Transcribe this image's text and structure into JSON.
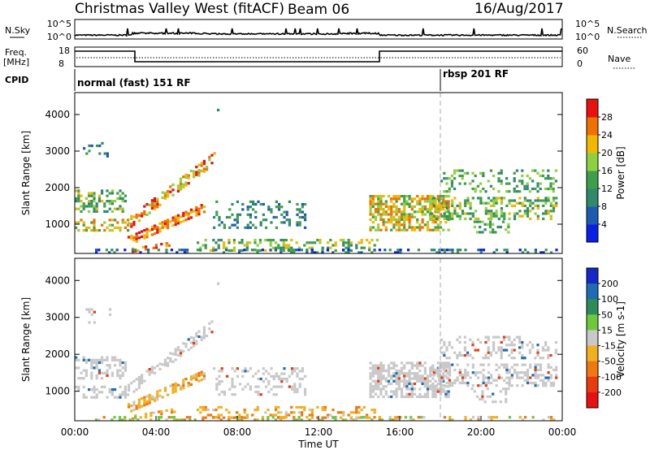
{
  "header": {
    "title": "Christmas Valley West (fitACF)",
    "beam": "Beam 06",
    "date": "16/Aug/2017"
  },
  "top_panel": {
    "left_label": "N.Sky",
    "right_label": "N.Search",
    "left_ticks": [
      "10^5",
      "10^0"
    ],
    "right_ticks": [
      "10^5",
      "10^0"
    ]
  },
  "freq_panel": {
    "left_label_line1": "Freq.",
    "left_label_line2": "[MHz]",
    "right_label": "Nave",
    "left_ticks": [
      "18",
      "8"
    ],
    "right_ticks": [
      "60",
      "0"
    ]
  },
  "cpid": {
    "label": "CPID",
    "segments": [
      {
        "text": "normal (fast) 151 RF",
        "start_hour": 0
      },
      {
        "text": "rbsp 201 RF",
        "start_hour": 18
      }
    ]
  },
  "chart_data": [
    {
      "type": "heatmap",
      "name_ref": "power-panel",
      "ylabel": "Slant Range [km]",
      "ylim": [
        200,
        4600
      ],
      "xlim": [
        0,
        24
      ],
      "yticks": [
        1000,
        2000,
        3000,
        4000
      ],
      "colorbar": {
        "label": "Power [dB]",
        "ticks": [
          "4",
          "8",
          "12",
          "16",
          "20",
          "24",
          "28"
        ],
        "colors": [
          "#0a1ee6",
          "#1e5ab4",
          "#2e8a6a",
          "#3e9e4a",
          "#8ed040",
          "#f0b800",
          "#f07000",
          "#e81010"
        ]
      }
    },
    {
      "type": "heatmap",
      "name_ref": "velocity-panel",
      "ylabel": "Slant Range [km]",
      "ylim": [
        200,
        4600
      ],
      "xlim": [
        0,
        24
      ],
      "yticks": [
        1000,
        2000,
        3000,
        4000
      ],
      "xticks": [
        "00:00",
        "04:00",
        "08:00",
        "12:00",
        "16:00",
        "20:00",
        "00:00"
      ],
      "xlabel": "Time UT",
      "colorbar": {
        "label": "Velocity [m s-1]",
        "ticks": [
          "200",
          "100",
          "50",
          "15",
          "-15",
          "-50",
          "-100",
          "-200"
        ],
        "colors": [
          "#1428c8",
          "#1e6cb4",
          "#2e8c5a",
          "#6cc83c",
          "#c8c8c8",
          "#f0b020",
          "#f07810",
          "#e83c10",
          "#e81010"
        ]
      }
    }
  ]
}
